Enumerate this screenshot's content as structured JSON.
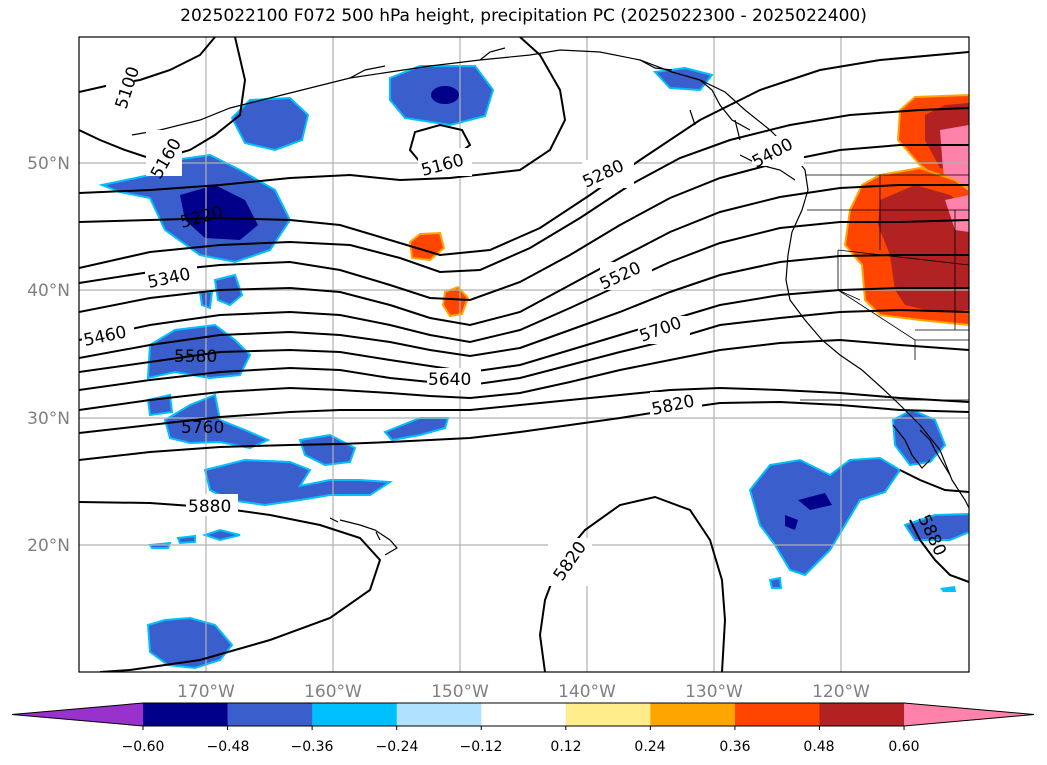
{
  "title": "2025022100 F072 500 hPa height, precipitation PC (2025022300 - 2025022400)",
  "latitude_labels": [
    "50°N",
    "40°N",
    "30°N",
    "20°N"
  ],
  "longitude_labels": [
    "170°W",
    "160°W",
    "150°W",
    "140°W",
    "130°W",
    "120°W"
  ],
  "height_contour_labels": [
    "5100",
    "5160",
    "5220",
    "5340",
    "5460",
    "5580",
    "5760",
    "5880",
    "5160",
    "5280",
    "5400",
    "5520",
    "5640",
    "5700",
    "5820",
    "5820",
    "5880"
  ],
  "colorbar": {
    "tick_labels": [
      "−0.60",
      "−0.48",
      "−0.36",
      "−0.24",
      "−0.12",
      "0.12",
      "0.24",
      "0.36",
      "0.48",
      "0.60"
    ],
    "colors": [
      "#9932cc",
      "#00008b",
      "#3a5fcd",
      "#00bfff",
      "#b0e2ff",
      "#ffffff",
      "#ffec8b",
      "#ffa500",
      "#ff4500",
      "#b22222",
      "#ff82ab"
    ]
  },
  "precip_colors": {
    "neg_strong": "#00008b",
    "neg_mid": "#3a5fcd",
    "neg_light": "#00bfff",
    "pos_light": "#ffa500",
    "pos_mid": "#ff4500",
    "pos_strong": "#b22222",
    "pos_max": "#ff82ab"
  }
}
